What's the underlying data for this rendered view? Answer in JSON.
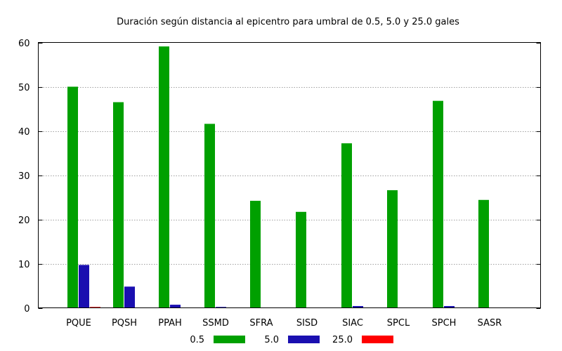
{
  "chart_data": {
    "type": "bar",
    "title": "Duración según distancia al epicentro para umbral de 0.5, 5.0 y 25.0 gales",
    "xlabel": "",
    "ylabel": "",
    "categories": [
      "PQUE",
      "PQSH",
      "PPAH",
      "SSMD",
      "SFRA",
      "SISD",
      "SIAC",
      "SPCL",
      "SPCH",
      "SASR"
    ],
    "series": [
      {
        "name": "0.5",
        "color": "#00a000",
        "values": [
          50.0,
          46.5,
          59.1,
          41.6,
          24.2,
          21.7,
          37.2,
          26.6,
          46.8,
          24.4
        ]
      },
      {
        "name": "5.0",
        "color": "#1a0fb0",
        "values": [
          9.7,
          4.8,
          0.7,
          0.2,
          0.0,
          0.0,
          0.4,
          0.0,
          0.4,
          0.0
        ]
      },
      {
        "name": "25.0",
        "color": "#ff0000",
        "values": [
          0.2,
          0.0,
          0.0,
          0.0,
          0.0,
          0.0,
          0.0,
          0.0,
          0.0,
          0.0
        ]
      }
    ],
    "ylim": [
      0,
      60
    ],
    "yticks": [
      0,
      10,
      20,
      30,
      40,
      50,
      60
    ],
    "grid": true,
    "legend_position": "bottom"
  }
}
